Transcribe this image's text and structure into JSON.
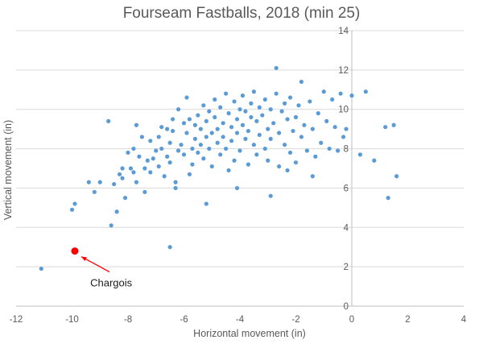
{
  "chart_data": {
    "type": "scatter",
    "title": "Fourseam Fastballs, 2018 (min 25)",
    "xlabel": "Horizontal movement (in)",
    "ylabel": "Vertical movement (in)",
    "xlim": [
      -12,
      4
    ],
    "ylim": [
      0,
      14
    ],
    "xticks": [
      -12,
      -10,
      -8,
      -6,
      -4,
      -2,
      0,
      2,
      4
    ],
    "yticks": [
      0,
      2,
      4,
      6,
      8,
      10,
      12,
      14
    ],
    "grid": "horizontal",
    "point_color": "#5B9BD5",
    "highlight_color": "#FF0000",
    "annotation_color": "#FF0000",
    "series": [
      {
        "values": [
          [
            -11.1,
            1.9
          ],
          [
            -10.0,
            4.9
          ],
          [
            -9.9,
            5.2
          ],
          [
            -9.4,
            6.3
          ],
          [
            -9.2,
            5.8
          ],
          [
            -9.0,
            6.3
          ],
          [
            -8.7,
            9.4
          ],
          [
            -8.6,
            4.1
          ],
          [
            -8.5,
            6.2
          ],
          [
            -8.4,
            4.8
          ],
          [
            -8.3,
            6.7
          ],
          [
            -8.2,
            7.0
          ],
          [
            -8.2,
            6.5
          ],
          [
            -8.1,
            5.5
          ],
          [
            -8.0,
            7.8
          ],
          [
            -7.9,
            7.0
          ],
          [
            -7.8,
            6.8
          ],
          [
            -7.8,
            8.0
          ],
          [
            -7.7,
            9.2
          ],
          [
            -7.7,
            6.3
          ],
          [
            -7.6,
            7.6
          ],
          [
            -7.5,
            8.6
          ],
          [
            -7.4,
            7.0
          ],
          [
            -7.4,
            5.8
          ],
          [
            -7.3,
            7.4
          ],
          [
            -7.2,
            6.8
          ],
          [
            -7.2,
            8.4
          ],
          [
            -7.1,
            7.5
          ],
          [
            -7.0,
            7.9
          ],
          [
            -6.9,
            7.1
          ],
          [
            -6.9,
            8.6
          ],
          [
            -6.8,
            9.1
          ],
          [
            -6.8,
            8.0
          ],
          [
            -6.7,
            6.6
          ],
          [
            -6.6,
            7.6
          ],
          [
            -6.6,
            9.0
          ],
          [
            -6.5,
            8.3
          ],
          [
            -6.5,
            7.3
          ],
          [
            -6.4,
            9.5
          ],
          [
            -6.4,
            8.9
          ],
          [
            -6.3,
            6.0
          ],
          [
            -6.3,
            6.3
          ],
          [
            -6.2,
            7.9
          ],
          [
            -6.2,
            10.0
          ],
          [
            -6.1,
            8.2
          ],
          [
            -6.0,
            9.3
          ],
          [
            -6.0,
            7.7
          ],
          [
            -5.9,
            10.6
          ],
          [
            -5.9,
            8.8
          ],
          [
            -5.8,
            6.7
          ],
          [
            -5.8,
            9.5
          ],
          [
            -5.7,
            8.0
          ],
          [
            -5.7,
            7.2
          ],
          [
            -5.6,
            9.2
          ],
          [
            -5.6,
            8.5
          ],
          [
            -5.5,
            9.7
          ],
          [
            -5.5,
            7.8
          ],
          [
            -5.4,
            8.2
          ],
          [
            -5.4,
            9.0
          ],
          [
            -5.3,
            10.2
          ],
          [
            -5.3,
            7.5
          ],
          [
            -5.2,
            8.6
          ],
          [
            -5.2,
            9.4
          ],
          [
            -5.1,
            8.0
          ],
          [
            -5.1,
            9.9
          ],
          [
            -5.0,
            8.8
          ],
          [
            -5.0,
            7.1
          ],
          [
            -4.9,
            9.6
          ],
          [
            -4.9,
            10.5
          ],
          [
            -4.8,
            8.3
          ],
          [
            -4.8,
            9.0
          ],
          [
            -4.7,
            7.7
          ],
          [
            -4.7,
            10.1
          ],
          [
            -4.6,
            8.6
          ],
          [
            -4.6,
            9.3
          ],
          [
            -4.5,
            10.8
          ],
          [
            -4.5,
            8.0
          ],
          [
            -4.4,
            9.8
          ],
          [
            -4.4,
            6.9
          ],
          [
            -4.3,
            9.1
          ],
          [
            -4.3,
            8.4
          ],
          [
            -4.2,
            10.4
          ],
          [
            -4.2,
            7.4
          ],
          [
            -4.1,
            9.5
          ],
          [
            -4.1,
            8.8
          ],
          [
            -4.0,
            10.0
          ],
          [
            -4.0,
            7.9
          ],
          [
            -3.9,
            9.2
          ],
          [
            -3.9,
            10.7
          ],
          [
            -3.8,
            8.5
          ],
          [
            -3.8,
            9.9
          ],
          [
            -3.7,
            7.2
          ],
          [
            -3.7,
            8.9
          ],
          [
            -3.6,
            10.3
          ],
          [
            -3.6,
            9.6
          ],
          [
            -3.5,
            8.2
          ],
          [
            -3.5,
            10.9
          ],
          [
            -3.4,
            9.4
          ],
          [
            -3.4,
            7.7
          ],
          [
            -3.3,
            10.1
          ],
          [
            -3.3,
            8.7
          ],
          [
            -3.2,
            9.7
          ],
          [
            -3.1,
            8.0
          ],
          [
            -3.1,
            10.5
          ],
          [
            -3.0,
            9.0
          ],
          [
            -3.0,
            7.4
          ],
          [
            -2.9,
            10.0
          ],
          [
            -2.9,
            8.5
          ],
          [
            -2.8,
            9.3
          ],
          [
            -2.7,
            12.1
          ],
          [
            -2.7,
            10.8
          ],
          [
            -2.6,
            8.8
          ],
          [
            -2.6,
            7.1
          ],
          [
            -2.5,
            9.9
          ],
          [
            -2.4,
            10.3
          ],
          [
            -2.4,
            8.2
          ],
          [
            -2.3,
            9.5
          ],
          [
            -2.2,
            7.8
          ],
          [
            -2.2,
            10.6
          ],
          [
            -2.1,
            8.9
          ],
          [
            -2.0,
            9.6
          ],
          [
            -2.0,
            7.3
          ],
          [
            -1.9,
            10.2
          ],
          [
            -1.8,
            8.6
          ],
          [
            -1.8,
            11.4
          ],
          [
            -1.7,
            9.2
          ],
          [
            -1.6,
            7.9
          ],
          [
            -1.5,
            10.4
          ],
          [
            -1.4,
            9.0
          ],
          [
            -1.3,
            7.6
          ],
          [
            -1.2,
            9.8
          ],
          [
            -1.1,
            8.3
          ],
          [
            -1.0,
            10.9
          ],
          [
            -0.9,
            9.4
          ],
          [
            -0.8,
            8.0
          ],
          [
            -0.7,
            10.5
          ],
          [
            -0.6,
            9.1
          ],
          [
            -0.5,
            7.9
          ],
          [
            -0.4,
            10.8
          ],
          [
            -0.3,
            8.6
          ],
          [
            -0.2,
            9.0
          ],
          [
            0.0,
            10.7
          ],
          [
            0.3,
            7.7
          ],
          [
            0.5,
            10.9
          ],
          [
            0.8,
            7.4
          ],
          [
            1.2,
            9.1
          ],
          [
            1.3,
            5.5
          ],
          [
            1.5,
            9.2
          ],
          [
            1.6,
            6.6
          ],
          [
            -6.5,
            3.0
          ],
          [
            -2.9,
            5.6
          ],
          [
            -2.3,
            6.9
          ],
          [
            -1.4,
            6.6
          ],
          [
            -5.2,
            5.2
          ],
          [
            -4.1,
            6.0
          ]
        ]
      }
    ],
    "highlight": {
      "point": [
        -9.9,
        2.8
      ],
      "label": "Chargois",
      "label_at": [
        -8.6,
        1.0
      ]
    }
  }
}
